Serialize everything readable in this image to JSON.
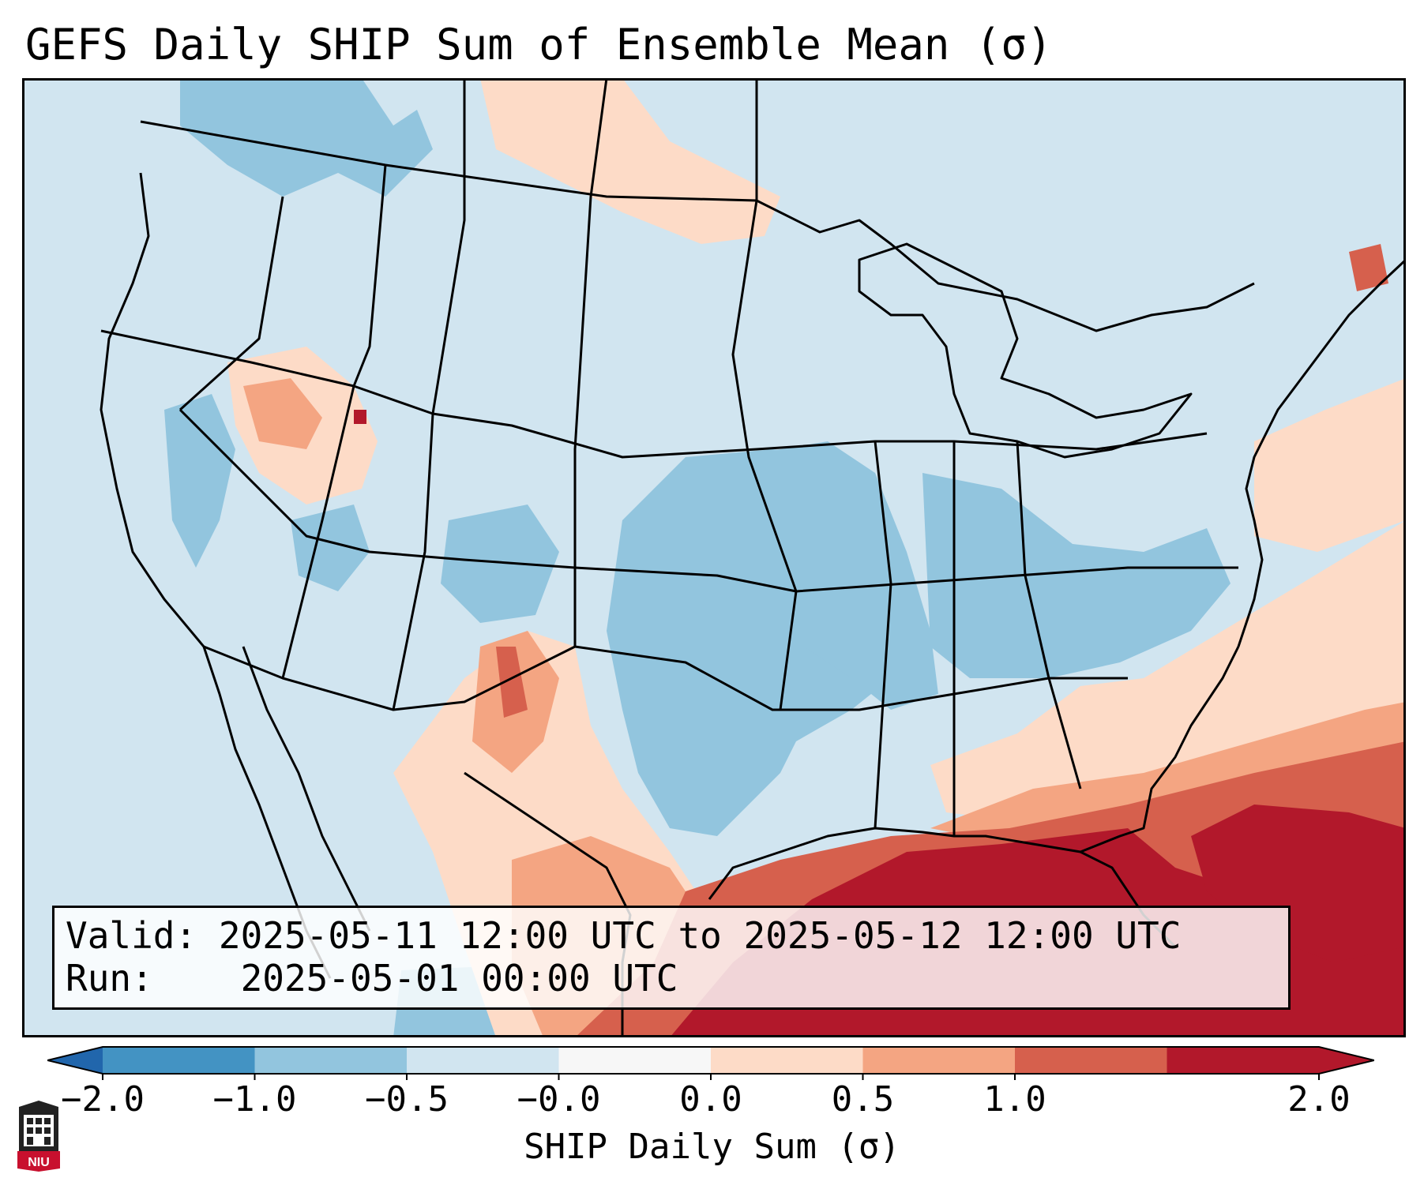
{
  "title": "GEFS Daily SHIP Sum of Ensemble Mean (σ)",
  "info": {
    "valid_label": "Valid:",
    "valid_value": "2025-05-11 12:00 UTC to 2025-05-12 12:00 UTC",
    "run_label": "Run:",
    "run_value": "2025-05-01 00:00 UTC"
  },
  "colorbar": {
    "label": "SHIP Daily Sum (σ)",
    "ticks": [
      "−2.0",
      "−1.0",
      "−0.5",
      "−0.0",
      "0.0",
      "0.5",
      "1.0",
      "2.0"
    ],
    "colors": [
      "#4393c3",
      "#92c5de",
      "#d1e5f0",
      "#f7f7f7",
      "#fddbc7",
      "#f4a582",
      "#d6604d",
      "#b2182b"
    ],
    "extend_low_color": "#2166ac",
    "extend_high_color": "#b2182b"
  },
  "map": {
    "ocean_color": "#d1e5f0",
    "boundary_color": "#000000"
  },
  "logo": {
    "text": "NIU",
    "color": "#c8102e"
  }
}
